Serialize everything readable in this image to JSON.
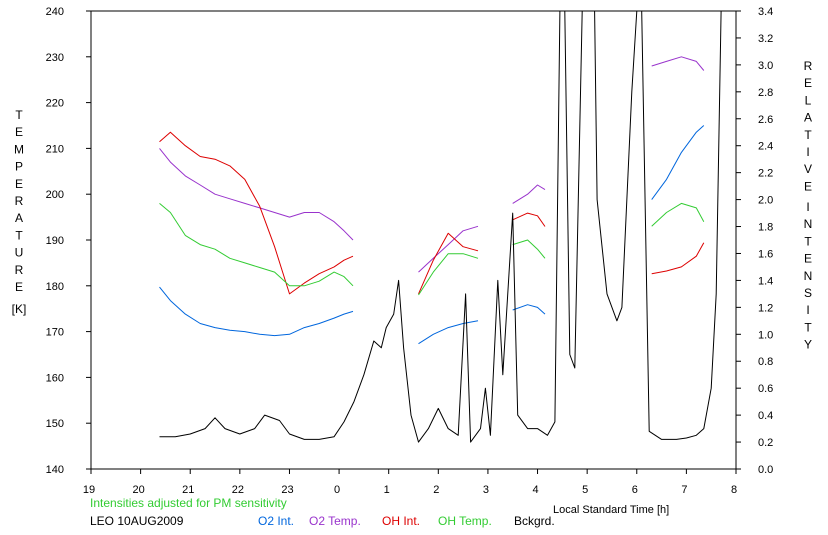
{
  "chart_data": {
    "type": "line",
    "left_axis": {
      "label_letters": [
        "T",
        "E",
        "M",
        "P",
        "E",
        "R",
        "A",
        "T",
        "U",
        "R",
        "E"
      ],
      "unit": "[K]",
      "ylim": [
        140,
        240
      ],
      "ticks": [
        140,
        150,
        160,
        170,
        180,
        190,
        200,
        210,
        220,
        230,
        240
      ]
    },
    "right_axis": {
      "label_letters_1": [
        "R",
        "E",
        "L",
        "A",
        "T",
        "I",
        "V",
        "E"
      ],
      "label_letters_2": [
        "I",
        "N",
        "T",
        "E",
        "N",
        "S",
        "I",
        "T",
        "Y"
      ],
      "ylim": [
        0.0,
        3.4
      ],
      "ticks": [
        "0.0",
        "0.2",
        "0.4",
        "0.6",
        "0.8",
        "1.0",
        "1.2",
        "1.4",
        "1.6",
        "1.8",
        "2.0",
        "2.2",
        "2.4",
        "2.6",
        "2.8",
        "3.0",
        "3.2",
        "3.4"
      ]
    },
    "x_axis": {
      "label": "Local Standard Time [h]",
      "xlim": [
        19,
        32
      ],
      "ticks": [
        19,
        20,
        21,
        22,
        23,
        24,
        25,
        26,
        27,
        28,
        29,
        30,
        31,
        32
      ],
      "tick_labels": [
        "19",
        "20",
        "21",
        "22",
        "23",
        "0",
        "1",
        "2",
        "3",
        "4",
        "5",
        "6",
        "7",
        "8"
      ]
    },
    "note": "Intensities adjusted for PM sensitivity",
    "station": "LEO 10AUG2009",
    "series": [
      {
        "name": "O2 Int.",
        "color": "#0066dd",
        "axis": "right",
        "segments": [
          [
            [
              20.38,
              1.35
            ],
            [
              20.6,
              1.25
            ],
            [
              20.9,
              1.15
            ],
            [
              21.2,
              1.08
            ],
            [
              21.5,
              1.05
            ],
            [
              21.8,
              1.03
            ],
            [
              22.1,
              1.02
            ],
            [
              22.4,
              1.0
            ],
            [
              22.7,
              0.99
            ],
            [
              23.0,
              1.0
            ],
            [
              23.3,
              1.05
            ],
            [
              23.6,
              1.08
            ],
            [
              23.9,
              1.12
            ],
            [
              24.1,
              1.15
            ],
            [
              24.28,
              1.17
            ]
          ],
          [
            [
              25.6,
              0.93
            ],
            [
              25.9,
              1.0
            ],
            [
              26.2,
              1.05
            ],
            [
              26.5,
              1.08
            ],
            [
              26.8,
              1.1
            ]
          ],
          [
            [
              27.5,
              1.18
            ],
            [
              27.8,
              1.22
            ],
            [
              28.0,
              1.2
            ],
            [
              28.15,
              1.15
            ]
          ],
          [
            [
              30.3,
              2.0
            ],
            [
              30.6,
              2.15
            ],
            [
              30.9,
              2.35
            ],
            [
              31.2,
              2.5
            ],
            [
              31.35,
              2.55
            ]
          ]
        ]
      },
      {
        "name": "O2 Temp.",
        "color": "#9933cc",
        "axis": "left",
        "segments": [
          [
            [
              20.38,
              210
            ],
            [
              20.6,
              207
            ],
            [
              20.9,
              204
            ],
            [
              21.2,
              202
            ],
            [
              21.5,
              200
            ],
            [
              21.8,
              199
            ],
            [
              22.1,
              198
            ],
            [
              22.4,
              197
            ],
            [
              22.7,
              196
            ],
            [
              23.0,
              195
            ],
            [
              23.3,
              196
            ],
            [
              23.6,
              196
            ],
            [
              23.9,
              194
            ],
            [
              24.1,
              192
            ],
            [
              24.28,
              190
            ]
          ],
          [
            [
              25.6,
              183
            ],
            [
              25.9,
              186
            ],
            [
              26.2,
              189
            ],
            [
              26.5,
              192
            ],
            [
              26.8,
              193
            ]
          ],
          [
            [
              27.5,
              198
            ],
            [
              27.8,
              200
            ],
            [
              28.0,
              202
            ],
            [
              28.15,
              201
            ]
          ],
          [
            [
              30.3,
              228
            ],
            [
              30.6,
              229
            ],
            [
              30.9,
              230
            ],
            [
              31.2,
              229
            ],
            [
              31.35,
              227
            ]
          ]
        ]
      },
      {
        "name": "OH Int.",
        "color": "#dd0000",
        "axis": "right",
        "segments": [
          [
            [
              20.38,
              2.43
            ],
            [
              20.6,
              2.5
            ],
            [
              20.9,
              2.4
            ],
            [
              21.2,
              2.32
            ],
            [
              21.5,
              2.3
            ],
            [
              21.8,
              2.25
            ],
            [
              22.1,
              2.15
            ],
            [
              22.4,
              1.95
            ],
            [
              22.7,
              1.65
            ],
            [
              23.0,
              1.3
            ],
            [
              23.3,
              1.38
            ],
            [
              23.6,
              1.45
            ],
            [
              23.9,
              1.5
            ],
            [
              24.1,
              1.55
            ],
            [
              24.28,
              1.58
            ]
          ],
          [
            [
              25.6,
              1.3
            ],
            [
              25.9,
              1.55
            ],
            [
              26.2,
              1.75
            ],
            [
              26.5,
              1.65
            ],
            [
              26.8,
              1.62
            ]
          ],
          [
            [
              27.5,
              1.85
            ],
            [
              27.8,
              1.9
            ],
            [
              28.0,
              1.88
            ],
            [
              28.15,
              1.8
            ]
          ],
          [
            [
              30.3,
              1.45
            ],
            [
              30.6,
              1.47
            ],
            [
              30.9,
              1.5
            ],
            [
              31.2,
              1.58
            ],
            [
              31.35,
              1.68
            ]
          ]
        ]
      },
      {
        "name": "OH Temp.",
        "color": "#33cc33",
        "axis": "left",
        "segments": [
          [
            [
              20.38,
              198
            ],
            [
              20.6,
              196
            ],
            [
              20.9,
              191
            ],
            [
              21.2,
              189
            ],
            [
              21.5,
              188
            ],
            [
              21.8,
              186
            ],
            [
              22.1,
              185
            ],
            [
              22.4,
              184
            ],
            [
              22.7,
              183
            ],
            [
              23.0,
              180
            ],
            [
              23.3,
              180
            ],
            [
              23.6,
              181
            ],
            [
              23.9,
              183
            ],
            [
              24.1,
              182
            ],
            [
              24.28,
              180
            ]
          ],
          [
            [
              25.6,
              178
            ],
            [
              25.9,
              183
            ],
            [
              26.2,
              187
            ],
            [
              26.5,
              187
            ],
            [
              26.8,
              186
            ]
          ],
          [
            [
              27.5,
              189
            ],
            [
              27.8,
              190
            ],
            [
              28.0,
              188
            ],
            [
              28.15,
              186
            ]
          ],
          [
            [
              30.3,
              193
            ],
            [
              30.6,
              196
            ],
            [
              30.9,
              198
            ],
            [
              31.2,
              197
            ],
            [
              31.35,
              194
            ]
          ]
        ]
      },
      {
        "name": "Bckgrd.",
        "color": "#000000",
        "axis": "right",
        "segments": [
          [
            [
              20.38,
              0.24
            ],
            [
              20.7,
              0.24
            ],
            [
              21.0,
              0.26
            ],
            [
              21.3,
              0.3
            ],
            [
              21.5,
              0.38
            ],
            [
              21.7,
              0.3
            ],
            [
              22.0,
              0.26
            ],
            [
              22.3,
              0.3
            ],
            [
              22.5,
              0.4
            ],
            [
              22.8,
              0.36
            ],
            [
              23.0,
              0.26
            ],
            [
              23.3,
              0.22
            ],
            [
              23.6,
              0.22
            ],
            [
              23.9,
              0.24
            ],
            [
              24.1,
              0.35
            ],
            [
              24.3,
              0.5
            ],
            [
              24.5,
              0.7
            ],
            [
              24.7,
              0.95
            ],
            [
              24.85,
              0.9
            ],
            [
              24.95,
              1.05
            ],
            [
              25.1,
              1.15
            ],
            [
              25.2,
              1.4
            ],
            [
              25.3,
              0.9
            ],
            [
              25.45,
              0.4
            ],
            [
              25.6,
              0.2
            ],
            [
              25.8,
              0.3
            ],
            [
              26.0,
              0.45
            ],
            [
              26.2,
              0.3
            ],
            [
              26.4,
              0.25
            ],
            [
              26.55,
              1.3
            ],
            [
              26.65,
              0.2
            ],
            [
              26.85,
              0.3
            ],
            [
              26.95,
              0.6
            ],
            [
              27.05,
              0.25
            ],
            [
              27.2,
              1.4
            ],
            [
              27.3,
              0.7
            ],
            [
              27.5,
              1.9
            ],
            [
              27.6,
              0.4
            ],
            [
              27.8,
              0.3
            ],
            [
              28.0,
              0.3
            ],
            [
              28.2,
              0.25
            ],
            [
              28.35,
              0.35
            ],
            [
              28.45,
              3.4
            ]
          ],
          [
            [
              28.55,
              3.4
            ],
            [
              28.65,
              0.85
            ],
            [
              28.75,
              0.75
            ],
            [
              28.9,
              3.4
            ]
          ],
          [
            [
              29.15,
              3.4
            ],
            [
              29.2,
              2.0
            ],
            [
              29.4,
              1.3
            ],
            [
              29.6,
              1.1
            ],
            [
              29.7,
              1.2
            ],
            [
              29.9,
              2.8
            ],
            [
              30.0,
              3.4
            ]
          ],
          [
            [
              30.1,
              3.4
            ],
            [
              30.25,
              0.28
            ],
            [
              30.5,
              0.22
            ],
            [
              30.8,
              0.22
            ],
            [
              31.0,
              0.23
            ],
            [
              31.2,
              0.25
            ],
            [
              31.35,
              0.3
            ],
            [
              31.5,
              0.6
            ],
            [
              31.6,
              1.3
            ],
            [
              31.7,
              3.4
            ]
          ]
        ]
      }
    ]
  }
}
